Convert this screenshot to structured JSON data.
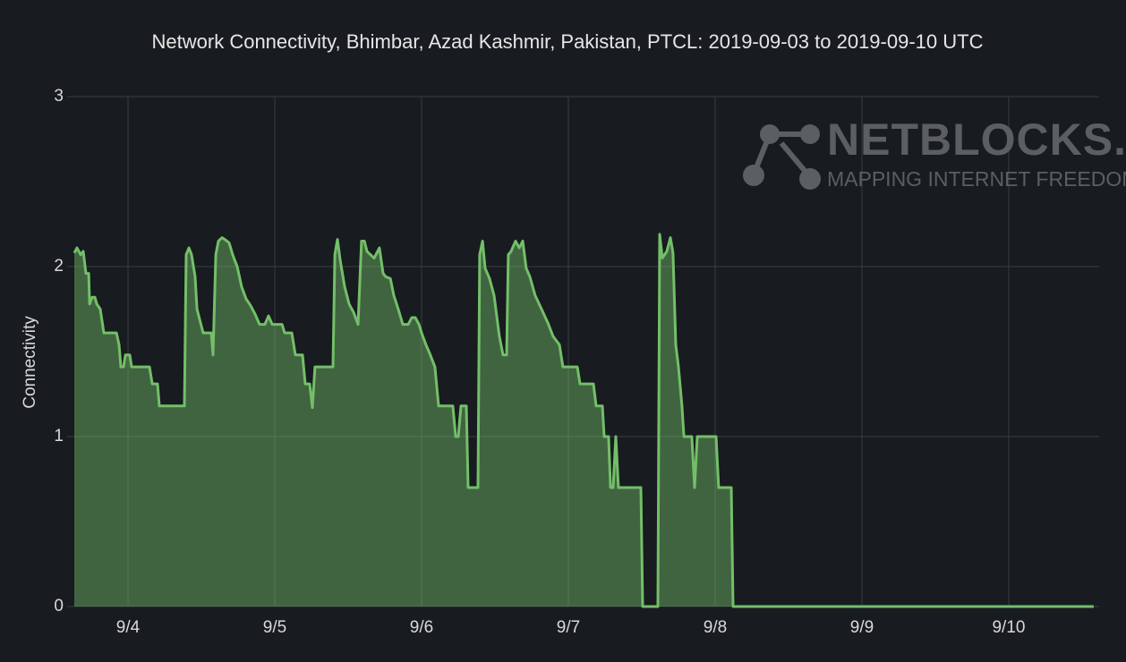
{
  "chart_data": {
    "type": "area",
    "title": "Network Connectivity, Bhimbar, Azad Kashmir, Pakistan, PTCL: 2019-09-03 to 2019-09-10 UTC",
    "y_label": "Connectivity",
    "watermark": {
      "name": "NETBLOCKS.ORG",
      "tagline": "MAPPING INTERNET FREEDOM"
    },
    "grid": true,
    "xlim": [
      3.634,
      10.616
    ],
    "xticks": [
      {
        "value": 4,
        "label": "9/4"
      },
      {
        "value": 5,
        "label": "9/5"
      },
      {
        "value": 6,
        "label": "9/6"
      },
      {
        "value": 7,
        "label": "9/7"
      },
      {
        "value": 8,
        "label": "9/8"
      },
      {
        "value": 9,
        "label": "9/9"
      },
      {
        "value": 10,
        "label": "9/10"
      }
    ],
    "ylim": [
      0,
      3
    ],
    "yticks": [
      0,
      1,
      2,
      3
    ],
    "series": [
      {
        "name": "Connectivity",
        "color": "#73bf69",
        "x": [
          3.634,
          3.652,
          3.677,
          3.695,
          3.713,
          3.732,
          3.738,
          3.756,
          3.774,
          3.787,
          3.811,
          3.835,
          3.921,
          3.939,
          3.951,
          3.97,
          3.982,
          4.012,
          4.024,
          4.146,
          4.165,
          4.201,
          4.213,
          4.384,
          4.396,
          4.415,
          4.433,
          4.457,
          4.47,
          4.494,
          4.512,
          4.567,
          4.579,
          4.598,
          4.616,
          4.64,
          4.659,
          4.689,
          4.713,
          4.744,
          4.774,
          4.805,
          4.835,
          4.866,
          4.896,
          4.933,
          4.957,
          4.982,
          5.049,
          5.067,
          5.116,
          5.14,
          5.189,
          5.207,
          5.238,
          5.256,
          5.274,
          5.396,
          5.409,
          5.427,
          5.445,
          5.476,
          5.506,
          5.537,
          5.567,
          5.591,
          5.61,
          5.628,
          5.652,
          5.677,
          5.713,
          5.738,
          5.756,
          5.787,
          5.811,
          5.841,
          5.872,
          5.909,
          5.933,
          5.957,
          5.982,
          6.0,
          6.03,
          6.055,
          6.091,
          6.116,
          6.213,
          6.232,
          6.25,
          6.268,
          6.305,
          6.317,
          6.384,
          6.396,
          6.415,
          6.433,
          6.463,
          6.494,
          6.53,
          6.555,
          6.579,
          6.591,
          6.61,
          6.64,
          6.665,
          6.689,
          6.713,
          6.738,
          6.774,
          6.817,
          6.86,
          6.896,
          6.939,
          6.963,
          7.061,
          7.079,
          7.171,
          7.189,
          7.232,
          7.244,
          7.274,
          7.287,
          7.305,
          7.323,
          7.341,
          7.494,
          7.506,
          7.61,
          7.622,
          7.64,
          7.671,
          7.695,
          7.713,
          7.732,
          7.75,
          7.774,
          7.787,
          7.841,
          7.86,
          7.878,
          8.006,
          8.024,
          8.11,
          8.122,
          10.579
        ],
        "values": [
          2.08,
          2.11,
          2.07,
          2.09,
          1.96,
          1.96,
          1.78,
          1.82,
          1.82,
          1.78,
          1.75,
          1.61,
          1.61,
          1.54,
          1.41,
          1.41,
          1.48,
          1.48,
          1.41,
          1.41,
          1.31,
          1.31,
          1.18,
          1.18,
          2.07,
          2.11,
          2.07,
          1.94,
          1.75,
          1.67,
          1.61,
          1.61,
          1.48,
          2.07,
          2.15,
          2.17,
          2.16,
          2.14,
          2.07,
          2.0,
          1.88,
          1.81,
          1.77,
          1.72,
          1.66,
          1.66,
          1.71,
          1.66,
          1.66,
          1.61,
          1.61,
          1.48,
          1.48,
          1.31,
          1.31,
          1.17,
          1.41,
          1.41,
          2.07,
          2.16,
          2.04,
          1.88,
          1.78,
          1.73,
          1.66,
          2.15,
          2.15,
          2.09,
          2.07,
          2.05,
          2.11,
          1.96,
          1.94,
          1.93,
          1.83,
          1.75,
          1.66,
          1.66,
          1.7,
          1.7,
          1.66,
          1.61,
          1.54,
          1.49,
          1.41,
          1.18,
          1.18,
          1.0,
          1.0,
          1.18,
          1.18,
          0.7,
          0.7,
          2.07,
          2.15,
          1.99,
          1.93,
          1.83,
          1.59,
          1.48,
          1.48,
          2.07,
          2.09,
          2.15,
          2.11,
          2.15,
          1.99,
          1.94,
          1.83,
          1.75,
          1.67,
          1.59,
          1.54,
          1.41,
          1.41,
          1.31,
          1.31,
          1.18,
          1.18,
          1.0,
          1.0,
          0.7,
          0.7,
          1.0,
          0.7,
          0.7,
          0,
          0,
          2.19,
          2.05,
          2.09,
          2.17,
          2.08,
          1.54,
          1.41,
          1.18,
          1.0,
          1.0,
          0.7,
          1.0,
          1.0,
          0.7,
          0.7,
          0,
          0
        ]
      }
    ]
  }
}
